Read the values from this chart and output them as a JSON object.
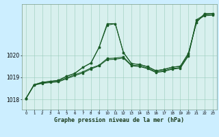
{
  "title": "Graphe pression niveau de la mer (hPa)",
  "hours": [
    0,
    1,
    2,
    3,
    4,
    5,
    6,
    7,
    8,
    9,
    10,
    11,
    12,
    13,
    14,
    15,
    16,
    17,
    18,
    19,
    20,
    21,
    22,
    23
  ],
  "ylim": [
    1017.55,
    1022.3
  ],
  "yticks": [
    1018,
    1019,
    1020
  ],
  "bg_color": "#cceeff",
  "plot_bg": "#d8f0ee",
  "grid_color": "#99ccbb",
  "line_color": "#1a5c28",
  "line_a": [
    1018.05,
    1018.67,
    1018.78,
    1018.82,
    1018.87,
    1019.05,
    1019.18,
    1019.45,
    1019.65,
    1020.35,
    1021.35,
    1021.42,
    1020.12,
    1019.62,
    1019.58,
    1019.48,
    1019.3,
    1019.36,
    1019.46,
    1019.5,
    1020.08,
    1021.48,
    1021.87,
    1021.88
  ],
  "line_b": [
    1018.05,
    1018.67,
    1018.78,
    1018.82,
    1018.87,
    1019.05,
    1019.18,
    1019.45,
    1019.65,
    1020.35,
    1021.42,
    1021.42,
    1020.12,
    1019.62,
    1019.58,
    1019.48,
    1019.3,
    1019.36,
    1019.46,
    1019.5,
    1020.08,
    1021.48,
    1021.87,
    1021.88
  ],
  "line_c": [
    1018.05,
    1018.67,
    1018.75,
    1018.8,
    1018.83,
    1018.98,
    1019.12,
    1019.25,
    1019.42,
    1019.55,
    1019.85,
    1019.87,
    1019.92,
    1019.55,
    1019.52,
    1019.42,
    1019.25,
    1019.3,
    1019.4,
    1019.44,
    1020.0,
    1021.6,
    1021.82,
    1021.84
  ],
  "line_d": [
    1018.05,
    1018.65,
    1018.73,
    1018.77,
    1018.8,
    1018.94,
    1019.08,
    1019.2,
    1019.38,
    1019.52,
    1019.8,
    1019.82,
    1019.87,
    1019.52,
    1019.49,
    1019.39,
    1019.22,
    1019.27,
    1019.37,
    1019.41,
    1019.97,
    1021.55,
    1021.78,
    1021.8
  ]
}
